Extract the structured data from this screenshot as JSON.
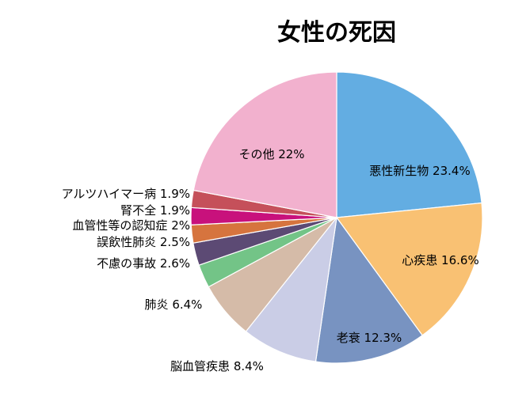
{
  "chart_data": {
    "type": "pie",
    "title": "女性の死因",
    "slices": [
      {
        "label": "悪性新生物",
        "value": 23.4,
        "display": "悪性新生物 23.4%",
        "color": "#63ade2"
      },
      {
        "label": "心疾患",
        "value": 16.6,
        "display": "心疾患 16.6%",
        "color": "#f9c173"
      },
      {
        "label": "老衰",
        "value": 12.3,
        "display": "老衰 12.3%",
        "color": "#7893c1"
      },
      {
        "label": "脳血管疾患",
        "value": 8.4,
        "display": "脳血管疾患 8.4%",
        "color": "#cacde6"
      },
      {
        "label": "肺炎",
        "value": 6.4,
        "display": "肺炎 6.4%",
        "color": "#d5bba8"
      },
      {
        "label": "不慮の事故",
        "value": 2.6,
        "display": "不慮の事故 2.6%",
        "color": "#73c487"
      },
      {
        "label": "誤飲性肺炎",
        "value": 2.5,
        "display": "誤飲性肺炎 2.5%",
        "color": "#5c4a74"
      },
      {
        "label": "血管性等の認知症",
        "value": 2.0,
        "display": "血管性等の認知症 2%",
        "color": "#d6743e"
      },
      {
        "label": "腎不全",
        "value": 1.9,
        "display": "腎不全 1.9%",
        "color": "#c8117c"
      },
      {
        "label": "アルツハイマー病",
        "value": 1.9,
        "display": "アルツハイマー病 1.9%",
        "color": "#c5505a"
      },
      {
        "label": "その他",
        "value": 22.0,
        "display": "その他 22%",
        "color": "#f2b1ce"
      }
    ]
  }
}
